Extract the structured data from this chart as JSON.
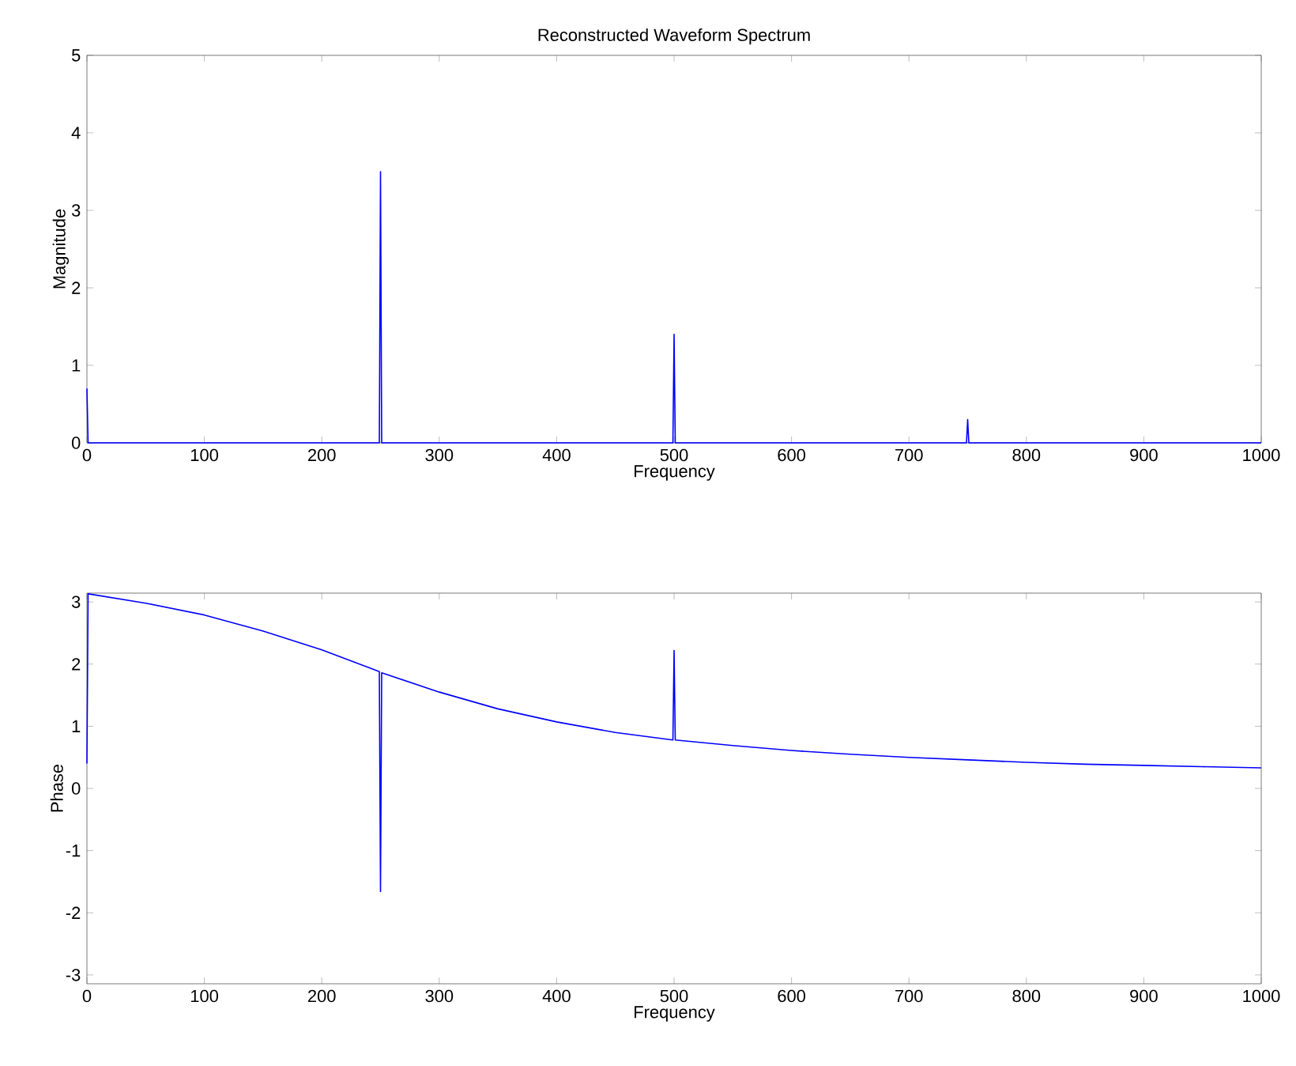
{
  "chart_data": [
    {
      "type": "line",
      "title": "Reconstructed Waveform Spectrum",
      "xlabel": "Frequency",
      "ylabel": "Magnitude",
      "xlim": [
        0,
        1000
      ],
      "ylim": [
        0,
        5
      ],
      "xticks": [
        0,
        100,
        200,
        300,
        400,
        500,
        600,
        700,
        800,
        900,
        1000
      ],
      "yticks": [
        0,
        1,
        2,
        3,
        4,
        5
      ],
      "series": [
        {
          "color": "#0000ff",
          "x": [
            0,
            1,
            249,
            250,
            251,
            499,
            500,
            501,
            749,
            750,
            751,
            1000
          ],
          "values": [
            0.7,
            0,
            0,
            3.5,
            0,
            0,
            1.4,
            0,
            0,
            0.3,
            0,
            0
          ]
        }
      ]
    },
    {
      "type": "line",
      "xlabel": "Frequency",
      "ylabel": "Phase",
      "xlim": [
        0,
        1000
      ],
      "ylim": [
        -3.1416,
        3.1416
      ],
      "xticks": [
        0,
        100,
        200,
        300,
        400,
        500,
        600,
        700,
        800,
        900,
        1000
      ],
      "yticks": [
        -3,
        -2,
        -1,
        0,
        1,
        2,
        3
      ],
      "series": [
        {
          "color": "#0000ff",
          "x": [
            0,
            1,
            50,
            100,
            150,
            200,
            249,
            250,
            251,
            300,
            350,
            400,
            450,
            499,
            500,
            501,
            550,
            600,
            650,
            700,
            750,
            800,
            850,
            900,
            950,
            1000
          ],
          "values": [
            0.4,
            3.13,
            2.98,
            2.79,
            2.53,
            2.23,
            1.88,
            -1.66,
            1.86,
            1.55,
            1.28,
            1.07,
            0.9,
            0.78,
            2.22,
            0.78,
            0.69,
            0.61,
            0.55,
            0.5,
            0.46,
            0.42,
            0.39,
            0.37,
            0.35,
            0.33
          ]
        }
      ]
    }
  ]
}
